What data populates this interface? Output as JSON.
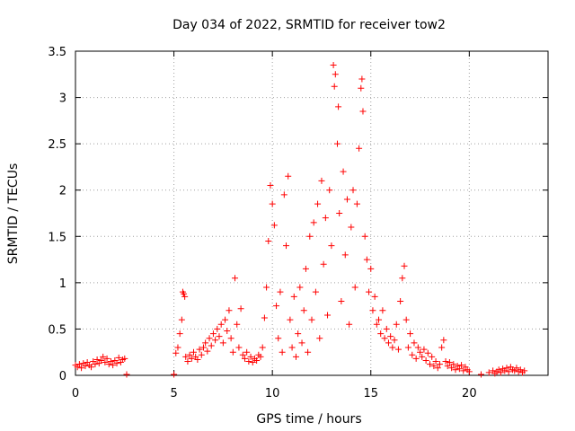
{
  "chart_data": {
    "type": "scatter",
    "title": "Day 034 of 2022, SRMTID for receiver tow2",
    "xlabel": "GPS time / hours",
    "ylabel": "SRMTID / TECUs",
    "xlim": [
      0,
      24
    ],
    "ylim": [
      0,
      3.5
    ],
    "xticks": [
      0,
      5,
      10,
      15,
      20
    ],
    "yticks": [
      0,
      0.5,
      1,
      1.5,
      2,
      2.5,
      3,
      3.5
    ],
    "ytick_labels": [
      "0",
      "0.5",
      "1",
      "1.5",
      "2",
      "2.5",
      "3",
      "3.5"
    ],
    "grid": true,
    "marker": "+",
    "color": "#ff0000",
    "series": [
      {
        "name": "SRMTID",
        "points": [
          [
            0.0,
            0.11
          ],
          [
            0.1,
            0.09
          ],
          [
            0.2,
            0.12
          ],
          [
            0.3,
            0.08
          ],
          [
            0.4,
            0.13
          ],
          [
            0.5,
            0.1
          ],
          [
            0.6,
            0.14
          ],
          [
            0.7,
            0.11
          ],
          [
            0.8,
            0.09
          ],
          [
            0.9,
            0.15
          ],
          [
            1.0,
            0.12
          ],
          [
            1.1,
            0.17
          ],
          [
            1.2,
            0.13
          ],
          [
            1.3,
            0.16
          ],
          [
            1.4,
            0.2
          ],
          [
            1.5,
            0.14
          ],
          [
            1.6,
            0.18
          ],
          [
            1.7,
            0.12
          ],
          [
            1.8,
            0.15
          ],
          [
            1.9,
            0.11
          ],
          [
            2.0,
            0.16
          ],
          [
            2.1,
            0.13
          ],
          [
            2.2,
            0.19
          ],
          [
            2.3,
            0.14
          ],
          [
            2.4,
            0.17
          ],
          [
            2.5,
            0.18
          ],
          [
            2.6,
            0.01
          ],
          [
            5.0,
            0.01
          ],
          [
            5.1,
            0.24
          ],
          [
            5.2,
            0.3
          ],
          [
            5.3,
            0.45
          ],
          [
            5.4,
            0.6
          ],
          [
            5.45,
            0.9
          ],
          [
            5.5,
            0.88
          ],
          [
            5.55,
            0.85
          ],
          [
            5.6,
            0.2
          ],
          [
            5.7,
            0.15
          ],
          [
            5.8,
            0.22
          ],
          [
            5.9,
            0.18
          ],
          [
            6.0,
            0.25
          ],
          [
            6.1,
            0.2
          ],
          [
            6.2,
            0.17
          ],
          [
            6.3,
            0.28
          ],
          [
            6.4,
            0.22
          ],
          [
            6.5,
            0.3
          ],
          [
            6.6,
            0.35
          ],
          [
            6.7,
            0.26
          ],
          [
            6.8,
            0.4
          ],
          [
            6.9,
            0.32
          ],
          [
            7.0,
            0.45
          ],
          [
            7.1,
            0.38
          ],
          [
            7.2,
            0.5
          ],
          [
            7.3,
            0.42
          ],
          [
            7.4,
            0.55
          ],
          [
            7.5,
            0.35
          ],
          [
            7.6,
            0.6
          ],
          [
            7.7,
            0.48
          ],
          [
            7.8,
            0.7
          ],
          [
            7.9,
            0.4
          ],
          [
            8.0,
            0.25
          ],
          [
            8.1,
            1.05
          ],
          [
            8.2,
            0.55
          ],
          [
            8.3,
            0.3
          ],
          [
            8.4,
            0.72
          ],
          [
            8.5,
            0.22
          ],
          [
            8.6,
            0.18
          ],
          [
            8.7,
            0.25
          ],
          [
            8.8,
            0.15
          ],
          [
            8.9,
            0.2
          ],
          [
            9.0,
            0.14
          ],
          [
            9.1,
            0.18
          ],
          [
            9.2,
            0.16
          ],
          [
            9.3,
            0.22
          ],
          [
            9.4,
            0.2
          ],
          [
            9.5,
            0.3
          ],
          [
            9.6,
            0.62
          ],
          [
            9.7,
            0.95
          ],
          [
            9.8,
            1.45
          ],
          [
            9.9,
            2.05
          ],
          [
            10.0,
            1.85
          ],
          [
            10.1,
            1.62
          ],
          [
            10.2,
            0.75
          ],
          [
            10.3,
            0.4
          ],
          [
            10.4,
            0.9
          ],
          [
            10.5,
            0.25
          ],
          [
            10.6,
            1.95
          ],
          [
            10.7,
            1.4
          ],
          [
            10.8,
            2.15
          ],
          [
            10.9,
            0.6
          ],
          [
            11.0,
            0.3
          ],
          [
            11.1,
            0.85
          ],
          [
            11.2,
            0.2
          ],
          [
            11.3,
            0.45
          ],
          [
            11.4,
            0.95
          ],
          [
            11.5,
            0.35
          ],
          [
            11.6,
            0.7
          ],
          [
            11.7,
            1.15
          ],
          [
            11.8,
            0.25
          ],
          [
            11.9,
            1.5
          ],
          [
            12.0,
            0.6
          ],
          [
            12.1,
            1.65
          ],
          [
            12.2,
            0.9
          ],
          [
            12.3,
            1.85
          ],
          [
            12.4,
            0.4
          ],
          [
            12.5,
            2.1
          ],
          [
            12.6,
            1.2
          ],
          [
            12.7,
            1.7
          ],
          [
            12.8,
            0.65
          ],
          [
            12.9,
            2.0
          ],
          [
            13.0,
            1.4
          ],
          [
            13.1,
            3.35
          ],
          [
            13.15,
            3.12
          ],
          [
            13.2,
            3.25
          ],
          [
            13.3,
            2.5
          ],
          [
            13.35,
            2.9
          ],
          [
            13.4,
            1.75
          ],
          [
            13.5,
            0.8
          ],
          [
            13.6,
            2.2
          ],
          [
            13.7,
            1.3
          ],
          [
            13.8,
            1.9
          ],
          [
            13.9,
            0.55
          ],
          [
            14.0,
            1.6
          ],
          [
            14.1,
            2.0
          ],
          [
            14.2,
            0.95
          ],
          [
            14.3,
            1.85
          ],
          [
            14.4,
            2.45
          ],
          [
            14.5,
            3.1
          ],
          [
            14.55,
            3.2
          ],
          [
            14.6,
            2.85
          ],
          [
            14.7,
            1.5
          ],
          [
            14.8,
            1.25
          ],
          [
            14.9,
            0.9
          ],
          [
            15.0,
            1.15
          ],
          [
            15.1,
            0.7
          ],
          [
            15.2,
            0.85
          ],
          [
            15.3,
            0.55
          ],
          [
            15.4,
            0.6
          ],
          [
            15.5,
            0.45
          ],
          [
            15.6,
            0.7
          ],
          [
            15.7,
            0.4
          ],
          [
            15.8,
            0.5
          ],
          [
            15.9,
            0.35
          ],
          [
            16.0,
            0.42
          ],
          [
            16.1,
            0.3
          ],
          [
            16.2,
            0.38
          ],
          [
            16.3,
            0.55
          ],
          [
            16.4,
            0.28
          ],
          [
            16.5,
            0.8
          ],
          [
            16.6,
            1.05
          ],
          [
            16.7,
            1.18
          ],
          [
            16.8,
            0.6
          ],
          [
            16.9,
            0.3
          ],
          [
            17.0,
            0.45
          ],
          [
            17.1,
            0.22
          ],
          [
            17.2,
            0.35
          ],
          [
            17.3,
            0.18
          ],
          [
            17.4,
            0.3
          ],
          [
            17.5,
            0.25
          ],
          [
            17.6,
            0.2
          ],
          [
            17.7,
            0.28
          ],
          [
            17.8,
            0.16
          ],
          [
            17.9,
            0.24
          ],
          [
            18.0,
            0.12
          ],
          [
            18.1,
            0.2
          ],
          [
            18.2,
            0.1
          ],
          [
            18.3,
            0.15
          ],
          [
            18.4,
            0.08
          ],
          [
            18.5,
            0.12
          ],
          [
            18.6,
            0.3
          ],
          [
            18.7,
            0.38
          ],
          [
            18.8,
            0.15
          ],
          [
            18.9,
            0.1
          ],
          [
            19.0,
            0.14
          ],
          [
            19.1,
            0.08
          ],
          [
            19.2,
            0.12
          ],
          [
            19.3,
            0.06
          ],
          [
            19.4,
            0.1
          ],
          [
            19.5,
            0.07
          ],
          [
            19.6,
            0.11
          ],
          [
            19.7,
            0.05
          ],
          [
            19.8,
            0.09
          ],
          [
            19.9,
            0.06
          ],
          [
            20.0,
            0.04
          ],
          [
            20.6,
            0.01
          ],
          [
            21.0,
            0.03
          ],
          [
            21.2,
            0.05
          ],
          [
            21.3,
            0.02
          ],
          [
            21.4,
            0.04
          ],
          [
            21.5,
            0.06
          ],
          [
            21.6,
            0.03
          ],
          [
            21.7,
            0.07
          ],
          [
            21.8,
            0.05
          ],
          [
            21.9,
            0.08
          ],
          [
            22.0,
            0.04
          ],
          [
            22.1,
            0.09
          ],
          [
            22.2,
            0.06
          ],
          [
            22.3,
            0.05
          ],
          [
            22.4,
            0.08
          ],
          [
            22.5,
            0.04
          ],
          [
            22.6,
            0.06
          ],
          [
            22.7,
            0.03
          ],
          [
            22.8,
            0.05
          ]
        ]
      }
    ]
  }
}
